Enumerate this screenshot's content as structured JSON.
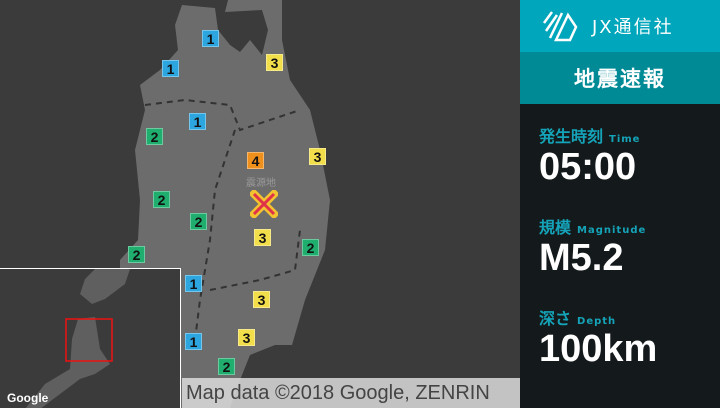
{
  "map": {
    "epicenter_label": "震源地",
    "markers": [
      {
        "intensity": "1",
        "color": "#2da6e0"
      },
      {
        "intensity": "1",
        "color": "#2da6e0"
      },
      {
        "intensity": "3",
        "color": "#f2dd4a"
      },
      {
        "intensity": "1",
        "color": "#2da6e0"
      },
      {
        "intensity": "2",
        "color": "#1fae6e"
      },
      {
        "intensity": "4",
        "color": "#ef8f1c"
      },
      {
        "intensity": "3",
        "color": "#f2dd4a"
      },
      {
        "intensity": "2",
        "color": "#1fae6e"
      },
      {
        "intensity": "2",
        "color": "#1fae6e"
      },
      {
        "intensity": "3",
        "color": "#f2dd4a"
      },
      {
        "intensity": "2",
        "color": "#1fae6e"
      },
      {
        "intensity": "2",
        "color": "#1fae6e"
      },
      {
        "intensity": "1",
        "color": "#2da6e0"
      },
      {
        "intensity": "3",
        "color": "#f2dd4a"
      },
      {
        "intensity": "3",
        "color": "#f2dd4a"
      },
      {
        "intensity": "1",
        "color": "#2da6e0"
      },
      {
        "intensity": "2",
        "color": "#1fae6e"
      }
    ],
    "inset_logo": "Google",
    "credit": "Map data ©2018 Google, ZENRIN"
  },
  "panel": {
    "brand": "JX通信社",
    "title": "地震速報",
    "time": {
      "label": "発生時刻",
      "sub": "Time",
      "value": "05:00"
    },
    "magnitude": {
      "label": "規模",
      "sub": "Magnitude",
      "value": "M5.2"
    },
    "depth": {
      "label": "深さ",
      "sub": "Depth",
      "value": "100km"
    }
  }
}
